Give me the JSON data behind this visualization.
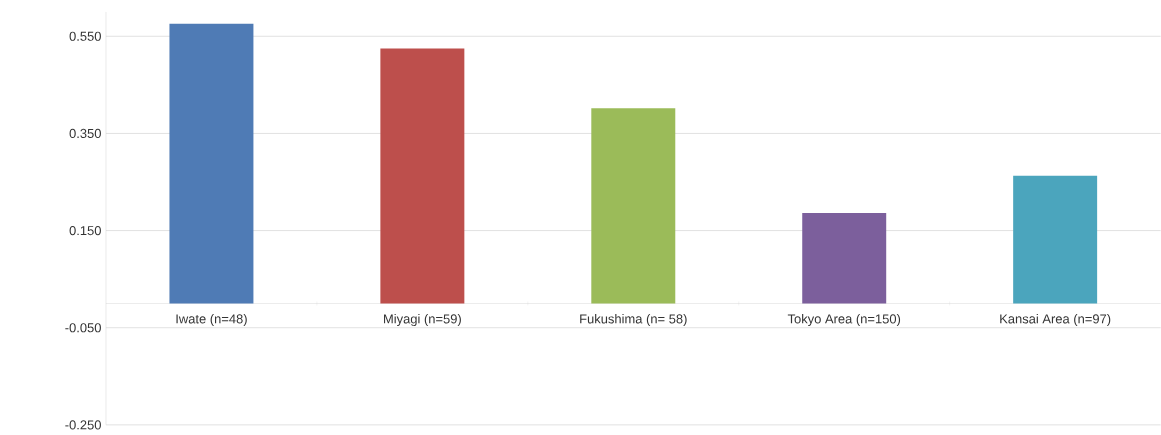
{
  "chart_data": {
    "type": "bar",
    "categories": [
      "Iwate (n=48)",
      "Miyagi (n=59)",
      "Fukushima (n= 58)",
      "Tokyo Area (n=150)",
      "Kansai Area (n=97)"
    ],
    "values": [
      0.576,
      0.525,
      0.402,
      0.186,
      0.263
    ],
    "colors": [
      "#4f7bb5",
      "#bd4f4c",
      "#9bbb59",
      "#7c5f9c",
      "#4ba5bd"
    ],
    "ylim": [
      -0.25,
      0.6
    ],
    "yticks": [
      {
        "value": -0.25,
        "label": "-0.250"
      },
      {
        "value": -0.05,
        "label": "-0.050"
      },
      {
        "value": 0.15,
        "label": "0.150"
      },
      {
        "value": 0.35,
        "label": "0.350"
      },
      {
        "value": 0.55,
        "label": "0.550"
      }
    ],
    "grid": "y"
  }
}
